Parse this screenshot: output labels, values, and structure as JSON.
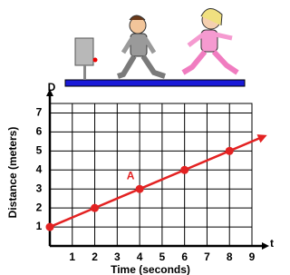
{
  "chart_data": {
    "type": "line",
    "x_label": "Time (seconds)",
    "y_label": "Distance (meters)",
    "x_axis_symbol": "t",
    "y_axis_symbol": "D",
    "annotation": "A",
    "annotation_x": 4,
    "annotation_y": 3,
    "x": [
      0,
      2,
      4,
      6,
      8
    ],
    "series": [
      {
        "name": null,
        "color": "#e32222",
        "values": [
          1,
          2,
          3,
          4,
          5
        ]
      }
    ],
    "xlim": [
      0,
      9
    ],
    "ylim": [
      0,
      7.5
    ],
    "xticks": [
      1,
      2,
      3,
      4,
      5,
      6,
      7,
      8,
      9
    ],
    "yticks": [
      1,
      2,
      3,
      4,
      5,
      6,
      7
    ],
    "grid": true
  }
}
